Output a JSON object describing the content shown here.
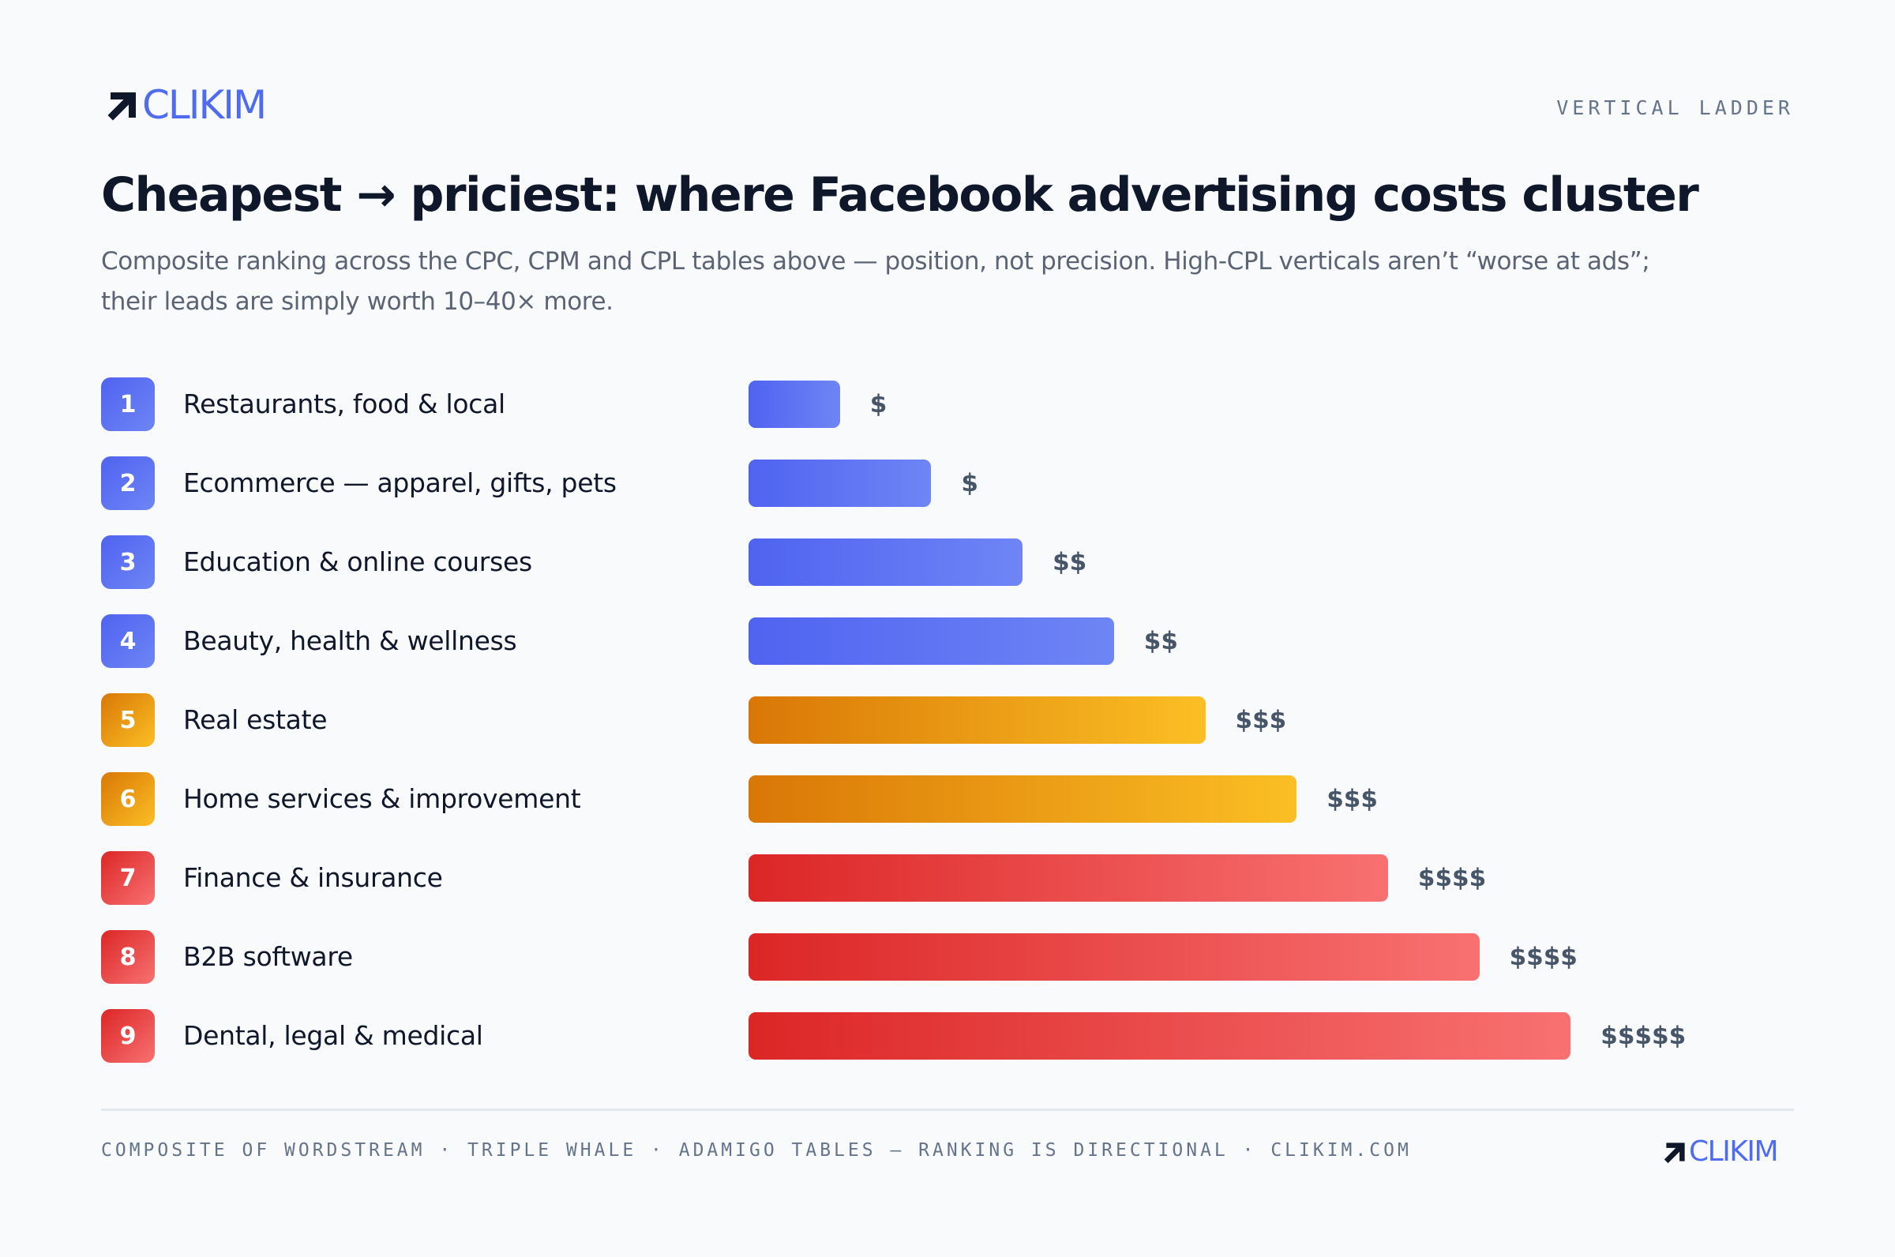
{
  "brand": {
    "name": "CLIKIM",
    "color": "#4f6cf0",
    "icon": "arrow-up-right-icon"
  },
  "tag": "VERTICAL LADDER",
  "title": "Cheapest → priciest: where Facebook advertising costs cluster",
  "subtitle": "Composite ranking across the CPC, CPM and CPL tables above — position, not precision. High-CPL verticals aren’t “worse at ads”; their leads are simply worth 10–40× more.",
  "tiers": {
    "low": {
      "from": "#4f63f0",
      "to": "#6e85f5"
    },
    "mid": {
      "from": "#d97706",
      "to": "#fbbf24"
    },
    "high": {
      "from": "#dc2626",
      "to": "#f87171"
    }
  },
  "chart_data": {
    "type": "bar",
    "orientation": "horizontal",
    "categories": [
      "Restaurants, food & local",
      "Ecommerce — apparel, gifts, pets",
      "Education & online courses",
      "Beauty, health & wellness",
      "Real estate",
      "Home services & improvement",
      "Finance & insurance",
      "B2B software",
      "Dental, legal & medical"
    ],
    "ranks": [
      "1",
      "2",
      "3",
      "4",
      "5",
      "6",
      "7",
      "8",
      "9"
    ],
    "values": [
      1,
      2,
      3,
      4,
      5,
      6,
      7,
      8,
      9
    ],
    "cost_labels": [
      "$",
      "$",
      "$$",
      "$$",
      "$$$",
      "$$$",
      "$$$$",
      "$$$$",
      "$$$$$"
    ],
    "tier": [
      "low",
      "low",
      "low",
      "low",
      "mid",
      "mid",
      "high",
      "high",
      "high"
    ],
    "xlim": [
      0,
      9
    ],
    "grid": false
  },
  "footer": "COMPOSITE OF WORDSTREAM · TRIPLE WHALE · ADAMIGO TABLES — RANKING IS DIRECTIONAL · CLIKIM.COM"
}
